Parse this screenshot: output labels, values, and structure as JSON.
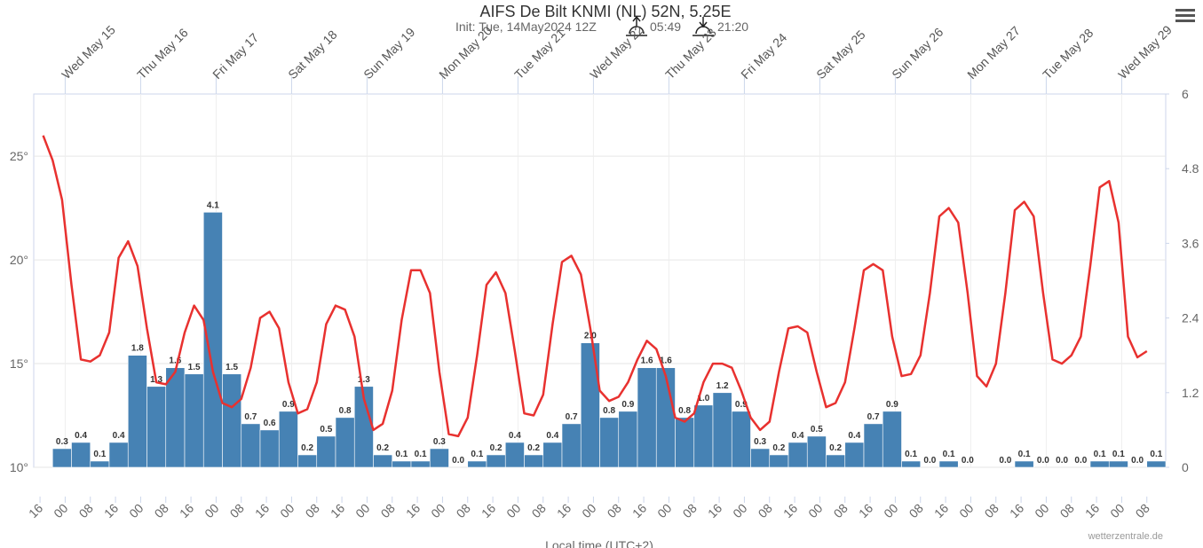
{
  "chart_data": {
    "type": "combo",
    "title": "AIFS De Bilt KNMI (NL) 52N, 5.25E",
    "subtitle": "Init: Tue, 14May2024 12Z",
    "sunrise": "05:49",
    "sunset": "21:20",
    "x_label": "Local time (UTC+2)",
    "credit": "wetterzentrale.de",
    "grid": true,
    "xlim": [
      -2,
      358
    ],
    "xticks": [
      {
        "value": 0,
        "label": "16"
      },
      {
        "value": 8,
        "label": "00"
      },
      {
        "value": 16,
        "label": "08"
      },
      {
        "value": 24,
        "label": "16"
      },
      {
        "value": 32,
        "label": "00"
      },
      {
        "value": 40,
        "label": "08"
      },
      {
        "value": 48,
        "label": "16"
      },
      {
        "value": 56,
        "label": "00"
      },
      {
        "value": 64,
        "label": "08"
      },
      {
        "value": 72,
        "label": "16"
      },
      {
        "value": 80,
        "label": "00"
      },
      {
        "value": 88,
        "label": "08"
      },
      {
        "value": 96,
        "label": "16"
      },
      {
        "value": 104,
        "label": "00"
      },
      {
        "value": 112,
        "label": "08"
      },
      {
        "value": 120,
        "label": "16"
      },
      {
        "value": 128,
        "label": "00"
      },
      {
        "value": 136,
        "label": "08"
      },
      {
        "value": 144,
        "label": "16"
      },
      {
        "value": 152,
        "label": "00"
      },
      {
        "value": 160,
        "label": "08"
      },
      {
        "value": 168,
        "label": "16"
      },
      {
        "value": 176,
        "label": "00"
      },
      {
        "value": 184,
        "label": "08"
      },
      {
        "value": 192,
        "label": "16"
      },
      {
        "value": 200,
        "label": "00"
      },
      {
        "value": 208,
        "label": "08"
      },
      {
        "value": 216,
        "label": "16"
      },
      {
        "value": 224,
        "label": "00"
      },
      {
        "value": 232,
        "label": "08"
      },
      {
        "value": 240,
        "label": "16"
      },
      {
        "value": 248,
        "label": "00"
      },
      {
        "value": 256,
        "label": "08"
      },
      {
        "value": 264,
        "label": "16"
      },
      {
        "value": 272,
        "label": "00"
      },
      {
        "value": 280,
        "label": "08"
      },
      {
        "value": 288,
        "label": "16"
      },
      {
        "value": 296,
        "label": "00"
      },
      {
        "value": 304,
        "label": "08"
      },
      {
        "value": 312,
        "label": "16"
      },
      {
        "value": 320,
        "label": "00"
      },
      {
        "value": 328,
        "label": "08"
      },
      {
        "value": 336,
        "label": "16"
      },
      {
        "value": 344,
        "label": "00"
      },
      {
        "value": 352,
        "label": "08"
      }
    ],
    "day_ticks": [
      {
        "value": 8,
        "label": "Wed May 15"
      },
      {
        "value": 32,
        "label": "Thu May 16"
      },
      {
        "value": 56,
        "label": "Fri May 17"
      },
      {
        "value": 80,
        "label": "Sat May 18"
      },
      {
        "value": 104,
        "label": "Sun May 19"
      },
      {
        "value": 128,
        "label": "Mon May 20"
      },
      {
        "value": 152,
        "label": "Tue May 21"
      },
      {
        "value": 176,
        "label": "Wed May 22"
      },
      {
        "value": 200,
        "label": "Thu May 23"
      },
      {
        "value": 224,
        "label": "Fri May 24"
      },
      {
        "value": 248,
        "label": "Sat May 25"
      },
      {
        "value": 272,
        "label": "Sun May 26"
      },
      {
        "value": 296,
        "label": "Mon May 27"
      },
      {
        "value": 320,
        "label": "Tue May 28"
      },
      {
        "value": 344,
        "label": "Wed May 29"
      }
    ],
    "ylim": [
      10,
      28
    ],
    "yticks": [
      {
        "value": 10,
        "label": "10°"
      },
      {
        "value": 15,
        "label": "15°"
      },
      {
        "value": 20,
        "label": "20°"
      },
      {
        "value": 25,
        "label": "25°"
      }
    ],
    "y2lim": [
      0,
      6
    ],
    "y2ticks": [
      0,
      1.2,
      2.4,
      3.6,
      4.8,
      6
    ],
    "series": [
      {
        "type": "bar",
        "axis": "y2",
        "color": "#4682b4",
        "bins": [
          4,
          10,
          16,
          22,
          28,
          34,
          40,
          46,
          52,
          58,
          64,
          70,
          76,
          82,
          88,
          94,
          100,
          106,
          112,
          118,
          124,
          130,
          136,
          142,
          148,
          154,
          160,
          166,
          172,
          178,
          184,
          190,
          196,
          202,
          208,
          214,
          220,
          226,
          232,
          238,
          244,
          250,
          256,
          262,
          268,
          274,
          280,
          286,
          292,
          298,
          304,
          310,
          316,
          322,
          328,
          334,
          340,
          346,
          352,
          358
        ],
        "values": [
          0.3,
          0.4,
          0.1,
          0.4,
          1.8,
          1.3,
          1.6,
          1.5,
          4.1,
          1.5,
          0.7,
          0.6,
          0.9,
          0.2,
          0.5,
          0.8,
          1.3,
          0.2,
          0.1,
          0.1,
          0.3,
          0,
          0.1,
          0.2,
          0.4,
          0.2,
          0.4,
          0.7,
          2,
          0.8,
          0.9,
          1.6,
          1.6,
          0.8,
          1,
          1.2,
          0.9,
          0.3,
          0.2,
          0.4,
          0.5,
          0.2,
          0.4,
          0.7,
          0.9,
          0.1,
          0,
          0.1,
          0,
          null,
          0,
          0.1,
          0,
          0,
          0,
          0.1,
          0.1,
          0,
          0.1
        ],
        "value_labels": [
          "0.3",
          "0.4",
          "0.1",
          "0.4",
          "1.8",
          "1.3",
          "1.6",
          "1.5",
          "4.1",
          "1.5",
          "0.7",
          "0.6",
          "0.9",
          "0.2",
          "0.5",
          "0.8",
          "1.3",
          "0.2",
          "0.1",
          "0.1",
          "0.3",
          "0.0",
          "0.1",
          "0.2",
          "0.4",
          "0.2",
          "0.4",
          "0.7",
          "2.0",
          "0.8",
          "0.9",
          "1.6",
          "1.6",
          "0.8",
          "1.0",
          "1.2",
          "0.9",
          "0.3",
          "0.2",
          "0.4",
          "0.5",
          "0.2",
          "0.4",
          "0.7",
          "0.9",
          "0.1",
          "0.0",
          "0.1",
          "0.0",
          null,
          "0.0",
          "0.1",
          "0.0",
          "0.0",
          "0.0",
          "0.1",
          "0.1",
          "0.0",
          "0.1"
        ]
      },
      {
        "type": "line",
        "color": "#e8312f",
        "x": [
          1,
          4,
          7,
          10,
          13,
          16,
          19,
          22,
          25,
          28,
          31,
          34,
          37,
          40,
          43,
          46,
          49,
          52,
          55,
          58,
          61,
          64,
          67,
          70,
          73,
          76,
          79,
          82,
          85,
          88,
          91,
          94,
          97,
          100,
          103,
          106,
          109,
          112,
          115,
          118,
          121,
          124,
          127,
          130,
          133,
          136,
          139,
          142,
          145,
          148,
          151,
          154,
          157,
          160,
          163,
          166,
          169,
          172,
          175,
          178,
          181,
          184,
          187,
          190,
          193,
          196,
          199,
          202,
          205,
          208,
          211,
          214,
          217,
          220,
          223,
          226,
          229,
          232,
          235,
          238,
          241,
          244,
          247,
          250,
          253,
          256,
          259,
          262,
          265,
          268,
          271,
          274,
          277,
          280,
          283,
          286,
          289,
          292,
          295,
          298,
          301,
          304,
          307,
          310,
          313,
          316,
          319,
          322,
          325,
          328,
          331,
          334,
          337,
          340,
          343,
          346,
          349,
          352
        ],
        "values": [
          26.0,
          24.8,
          22.9,
          18.8,
          15.2,
          15.1,
          15.4,
          16.5,
          20.1,
          20.9,
          19.7,
          16.7,
          14.1,
          14.0,
          14.6,
          16.5,
          17.8,
          17.1,
          14.6,
          13.1,
          12.9,
          13.3,
          14.8,
          17.2,
          17.5,
          16.7,
          14.1,
          12.6,
          12.8,
          14.1,
          16.9,
          17.8,
          17.6,
          16.3,
          13.3,
          11.8,
          12.1,
          13.7,
          17.1,
          19.5,
          19.5,
          18.4,
          14.6,
          11.6,
          11.5,
          12.4,
          15.4,
          18.8,
          19.4,
          18.4,
          15.6,
          12.6,
          12.5,
          13.5,
          16.9,
          19.9,
          20.2,
          19.3,
          16.7,
          13.7,
          13.2,
          13.4,
          14.1,
          15.2,
          16.1,
          15.7,
          14.4,
          12.4,
          12.2,
          12.6,
          14.1,
          15.0,
          15.0,
          14.8,
          13.7,
          12.4,
          11.8,
          12.2,
          14.6,
          16.7,
          16.8,
          16.5,
          14.6,
          12.9,
          13.1,
          14.1,
          16.7,
          19.5,
          19.8,
          19.5,
          16.3,
          14.4,
          14.5,
          15.4,
          18.4,
          22.1,
          22.5,
          21.8,
          18.4,
          14.4,
          13.9,
          15.0,
          18.4,
          22.4,
          22.8,
          22.1,
          18.4,
          15.2,
          15.0,
          15.4,
          16.3,
          19.7,
          23.5,
          23.8,
          21.8,
          16.3,
          15.3,
          15.6
        ]
      }
    ]
  }
}
